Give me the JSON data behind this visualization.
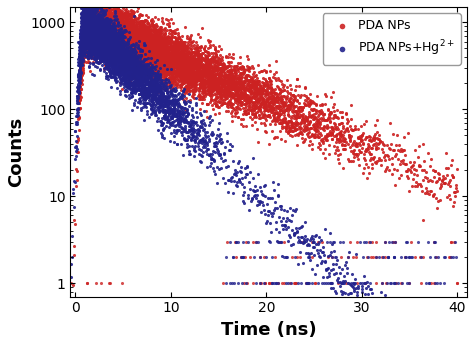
{
  "title": "",
  "xlabel": "Time (ns)",
  "ylabel": "Counts",
  "xlim": [
    -0.5,
    41
  ],
  "ylim_log": [
    0.7,
    1500
  ],
  "series": [
    {
      "label": "PDA NPs",
      "color": "#cc2222",
      "tau": 9.0,
      "peak_time": 1.2,
      "peak_val": 1000,
      "noise_scale": 0.35,
      "n_main": 600,
      "n_floor": 120
    },
    {
      "label": "PDA NPs+Hg$^{2+}$",
      "color": "#22228c",
      "tau": 4.0,
      "peak_time": 1.0,
      "peak_val": 1000,
      "noise_scale": 0.35,
      "n_main": 700,
      "n_floor": 200
    }
  ],
  "legend_loc": "upper right",
  "tick_direction": "in",
  "xticks": [
    0,
    10,
    20,
    30,
    40
  ],
  "yticks": [
    1,
    10,
    100,
    1000
  ],
  "background_color": "#ffffff",
  "xlabel_fontsize": 13,
  "ylabel_fontsize": 13,
  "legend_fontsize": 9
}
